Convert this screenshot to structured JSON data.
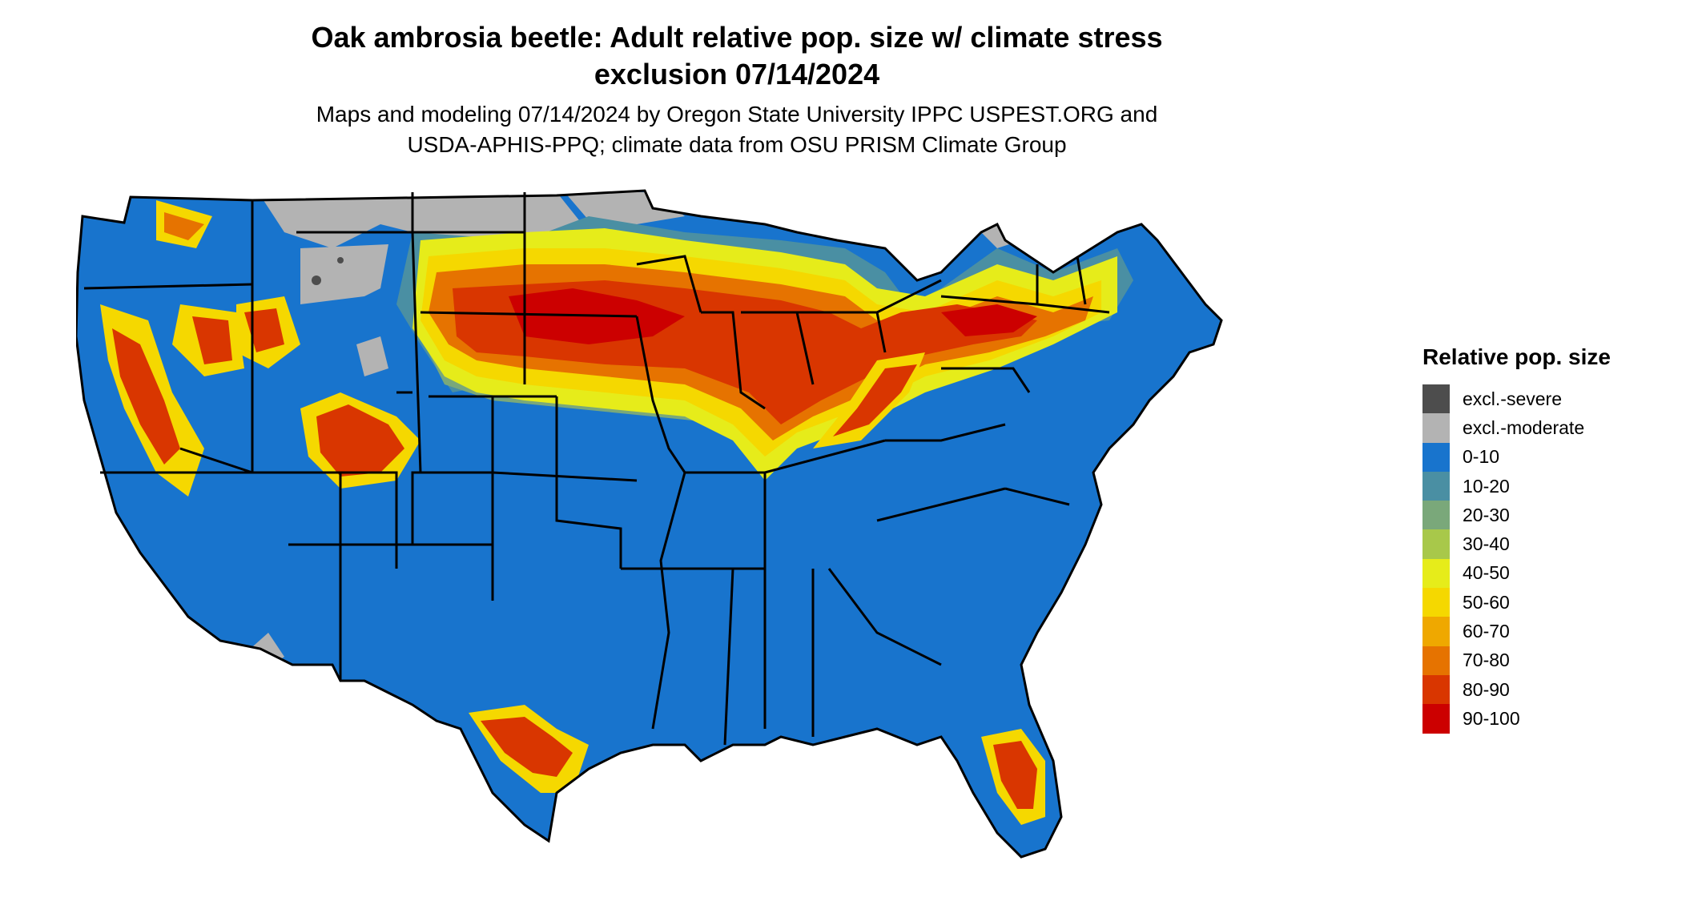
{
  "title": {
    "line1": "Oak ambrosia beetle: Adult relative pop. size w/ climate stress",
    "line2": "exclusion 07/14/2024"
  },
  "subtitle": {
    "line1": "Maps and modeling 07/14/2024 by Oregon State University IPPC USPEST.ORG and",
    "line2": "USDA-APHIS-PPQ; climate data from OSU PRISM Climate Group"
  },
  "legend": {
    "title": "Relative pop. size",
    "items": [
      {
        "label": "excl.-severe",
        "color": "#4d4d4d"
      },
      {
        "label": "excl.-moderate",
        "color": "#b3b3b3"
      },
      {
        "label": "0-10",
        "color": "#1874cd"
      },
      {
        "label": "10-20",
        "color": "#4a8fa3"
      },
      {
        "label": "20-30",
        "color": "#7aa87a"
      },
      {
        "label": "30-40",
        "color": "#a8c84a"
      },
      {
        "label": "40-50",
        "color": "#e6ec1a"
      },
      {
        "label": "50-60",
        "color": "#f5d800"
      },
      {
        "label": "60-70",
        "color": "#efa800"
      },
      {
        "label": "70-80",
        "color": "#e67300"
      },
      {
        "label": "80-90",
        "color": "#d93600"
      },
      {
        "label": "90-100",
        "color": "#cc0000"
      }
    ]
  }
}
